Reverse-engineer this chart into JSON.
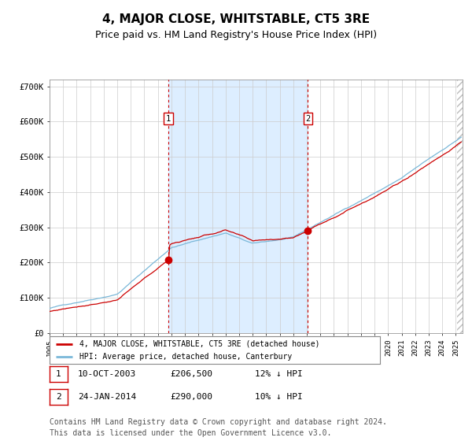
{
  "title": "4, MAJOR CLOSE, WHITSTABLE, CT5 3RE",
  "subtitle": "Price paid vs. HM Land Registry's House Price Index (HPI)",
  "title_fontsize": 11,
  "subtitle_fontsize": 9,
  "xlim_start": 1995.0,
  "xlim_end": 2025.5,
  "ylim": [
    0,
    720000
  ],
  "yticks": [
    0,
    100000,
    200000,
    300000,
    400000,
    500000,
    600000,
    700000
  ],
  "ytick_labels": [
    "£0",
    "£100K",
    "£200K",
    "£300K",
    "£400K",
    "£500K",
    "£600K",
    "£700K"
  ],
  "hpi_color": "#7ab8d9",
  "price_color": "#cc0000",
  "marker_color": "#cc0000",
  "vline_color": "#cc0000",
  "shade_color": "#ddeeff",
  "grid_color": "#cccccc",
  "bg_color": "#ffffff",
  "transaction1_x": 2003.78,
  "transaction1_y": 206500,
  "transaction2_x": 2014.07,
  "transaction2_y": 290000,
  "xtick_years": [
    1995,
    1996,
    1997,
    1998,
    1999,
    2000,
    2001,
    2002,
    2003,
    2004,
    2005,
    2006,
    2007,
    2008,
    2009,
    2010,
    2011,
    2012,
    2013,
    2014,
    2015,
    2016,
    2017,
    2018,
    2019,
    2020,
    2021,
    2022,
    2023,
    2024,
    2025
  ],
  "legend_price_label": "4, MAJOR CLOSE, WHITSTABLE, CT5 3RE (detached house)",
  "legend_hpi_label": "HPI: Average price, detached house, Canterbury",
  "table_data": [
    {
      "num": "1",
      "date": "10-OCT-2003",
      "price": "£206,500",
      "hpi": "12% ↓ HPI"
    },
    {
      "num": "2",
      "date": "24-JAN-2014",
      "price": "£290,000",
      "hpi": "10% ↓ HPI"
    }
  ],
  "footnote": "Contains HM Land Registry data © Crown copyright and database right 2024.\nThis data is licensed under the Open Government Licence v3.0.",
  "footnote_fontsize": 7
}
